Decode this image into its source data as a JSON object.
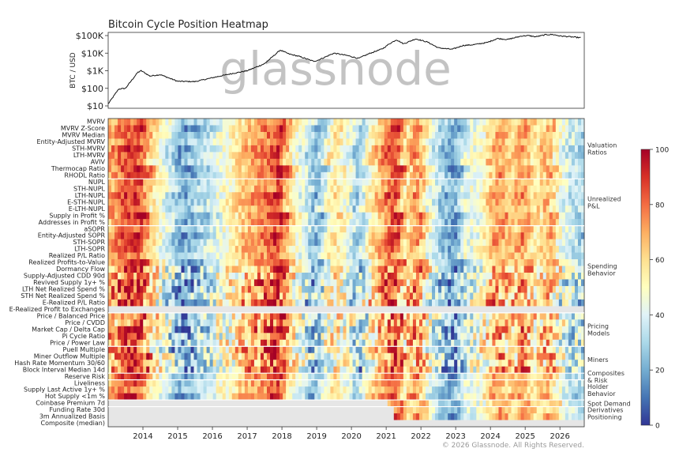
{
  "title": "Bitcoin Cycle Position Heatmap",
  "watermark": "glassnode",
  "copyright": "© 2026 Glassnode. All Rights Reserved.",
  "chart_data": [
    {
      "type": "line",
      "ylabel": "BTC / USD",
      "yscale": "log",
      "yticks": [
        10,
        100,
        1000,
        10000,
        100000
      ],
      "ytick_labels": [
        "$10",
        "$100",
        "$1K",
        "$10K",
        "$100K"
      ],
      "ylim": [
        10,
        200000
      ],
      "xlim": [
        2013.0,
        2026.7
      ],
      "x": [
        2013.0,
        2013.3,
        2013.5,
        2013.85,
        2013.95,
        2014.2,
        2014.5,
        2015.0,
        2015.5,
        2016.0,
        2016.5,
        2017.0,
        2017.5,
        2017.95,
        2018.2,
        2018.5,
        2018.9,
        2019.0,
        2019.5,
        2019.9,
        2020.2,
        2020.5,
        2020.9,
        2021.1,
        2021.3,
        2021.5,
        2021.85,
        2022.2,
        2022.5,
        2022.9,
        2023.2,
        2023.5,
        2023.9,
        2024.2,
        2024.5,
        2024.9,
        2025.1,
        2025.3,
        2025.6,
        2025.8,
        2026.0,
        2026.3,
        2026.6
      ],
      "y": [
        13,
        90,
        100,
        800,
        1000,
        500,
        600,
        250,
        240,
        400,
        650,
        1000,
        2500,
        15000,
        9000,
        6500,
        3500,
        3700,
        10000,
        7200,
        5000,
        9200,
        18000,
        35000,
        58000,
        34000,
        65000,
        42000,
        20000,
        16500,
        27000,
        30000,
        40000,
        68000,
        60000,
        95000,
        100000,
        85000,
        112000,
        115000,
        95000,
        85000,
        75000
      ]
    },
    {
      "type": "heatmap",
      "metrics": [
        "MVRV",
        "MVRV Z-Score",
        "MVRV Median",
        "Entity-Adjusted MVRV",
        "STH-MVRV",
        "LTH-MVRV",
        "AVIV",
        "Thermocap Ratio",
        "RHODL Ratio",
        "NUPL",
        "STH-NUPL",
        "LTH-NUPL",
        "E-STH-NUPL",
        "E-LTH-NUPL",
        "Supply in Profit %",
        "Addresses in Profit %",
        "aSOPR",
        "Entity-Adjusted SOPR",
        "STH-SOPR",
        "LTH-SOPR",
        "Realized P/L Ratio",
        "Realized Profits-to-Value",
        "Dormancy Flow",
        "Supply-Adjusted CDD 90d",
        "Revived Supply 1y+ %",
        "LTH Net Realized Spend %",
        "STH Net Realized Spend %",
        "E-Realized P/L Ratio",
        "E-Realized Profit to Exchanges",
        "Price / Balanced Price",
        "Price / CVDD",
        "Market Cap / Delta Cap",
        "Pi Cycle Ratio",
        "Price / Power Law",
        "Puell Multiple",
        "Miner Outflow Multiple",
        "Hash Rate Momentum 30/60",
        "Block Interval Median 14d",
        "Reserve Risk",
        "Liveliness",
        "Supply Last Active 1y+ %",
        "Hot Supply <1m %",
        "Coinbase Premium 7d",
        "Funding Rate 30d",
        "3m Annualized Basis",
        "Composite (median)"
      ],
      "groups": [
        {
          "label": [
            "Valuation",
            "Ratios"
          ],
          "first": 0,
          "last": 8
        },
        {
          "label": [
            "Unrealized",
            "P&L"
          ],
          "first": 9,
          "last": 15
        },
        {
          "label": [
            "Spending",
            "Behavior"
          ],
          "first": 16,
          "last": 28
        },
        {
          "label": [
            "Pricing",
            "Models"
          ],
          "first": 29,
          "last": 33
        },
        {
          "label": [
            "Miners"
          ],
          "first": 34,
          "last": 37
        },
        {
          "label": [
            "Composites",
            "& Risk"
          ],
          "first": 38,
          "last": 38
        },
        {
          "label": [
            "Holder",
            "Behavior"
          ],
          "first": 39,
          "last": 41
        },
        {
          "label": [
            "Spot Demand"
          ],
          "first": 42,
          "last": 42
        },
        {
          "label": [
            "Derivatives",
            "Positioning"
          ],
          "first": 43,
          "last": 44
        }
      ],
      "xlim": [
        2013.0,
        2026.7
      ],
      "xticks": [
        "2014",
        "2015",
        "2016",
        "2017",
        "2018",
        "2019",
        "2020",
        "2021",
        "2022",
        "2023",
        "2024",
        "2025",
        "2026"
      ],
      "cycle_anchors": [
        [
          2013.0,
          70
        ],
        [
          2013.4,
          88
        ],
        [
          2013.9,
          97
        ],
        [
          2014.3,
          60
        ],
        [
          2014.8,
          32
        ],
        [
          2015.1,
          12
        ],
        [
          2015.6,
          22
        ],
        [
          2016.1,
          40
        ],
        [
          2016.6,
          55
        ],
        [
          2017.0,
          72
        ],
        [
          2017.5,
          82
        ],
        [
          2017.95,
          98
        ],
        [
          2018.3,
          55
        ],
        [
          2018.8,
          28
        ],
        [
          2019.0,
          15
        ],
        [
          2019.5,
          62
        ],
        [
          2020.0,
          40
        ],
        [
          2020.2,
          20
        ],
        [
          2020.6,
          58
        ],
        [
          2021.1,
          88
        ],
        [
          2021.35,
          95
        ],
        [
          2021.55,
          55
        ],
        [
          2021.9,
          82
        ],
        [
          2022.3,
          40
        ],
        [
          2022.7,
          18
        ],
        [
          2022.95,
          8
        ],
        [
          2023.3,
          40
        ],
        [
          2023.7,
          45
        ],
        [
          2024.2,
          80
        ],
        [
          2024.6,
          62
        ],
        [
          2024.95,
          82
        ],
        [
          2025.3,
          55
        ],
        [
          2025.7,
          75
        ],
        [
          2026.1,
          38
        ],
        [
          2026.7,
          25
        ]
      ],
      "data_start": {
        "Coinbase Premium 7d": 2021.0,
        "Funding Rate 30d": 2021.2,
        "3m Annualized Basis": 2021.2
      },
      "no_data_rows": [
        "E-Realized Profit to Exchanges"
      ],
      "colorbar": {
        "min": 0,
        "max": 100,
        "ticks": [
          0,
          20,
          40,
          60,
          80,
          100
        ],
        "colormap": "RdYlBu_r"
      }
    }
  ],
  "colors": {
    "price_line": "#111111",
    "no_data": "#e6e6e6",
    "watermark": "#b9b9b9",
    "text": "#222222"
  }
}
